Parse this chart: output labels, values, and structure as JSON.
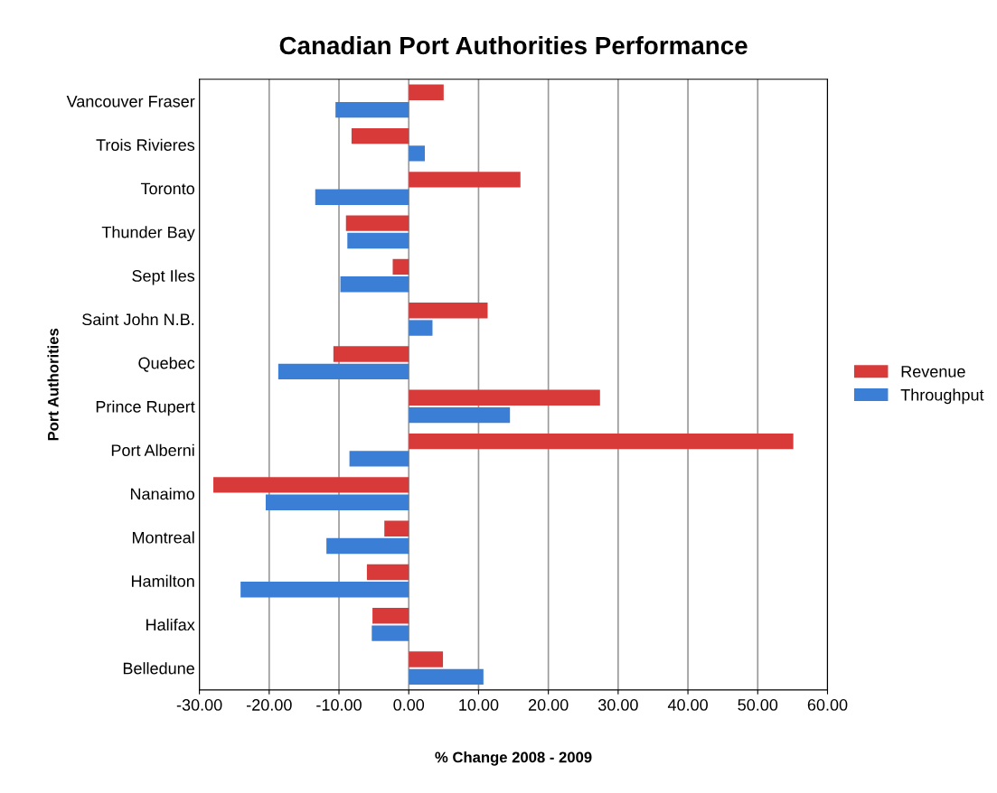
{
  "chart_data": {
    "type": "bar",
    "orientation": "horizontal",
    "title": "Canadian Port Authorities Performance",
    "xlabel": "% Change 2008 - 2009",
    "ylabel": "Port Authorities",
    "categories": [
      "Vancouver Fraser",
      "Trois Rivieres",
      "Toronto",
      "Thunder Bay",
      "Sept Iles",
      "Saint John N.B.",
      "Quebec",
      "Prince Rupert",
      "Port Alberni",
      "Nanaimo",
      "Montreal",
      "Hamilton",
      "Halifax",
      "Belledune"
    ],
    "series": [
      {
        "name": "Revenue",
        "color": "#d83a3a",
        "values": [
          5.0,
          -8.2,
          16.0,
          -9.0,
          -2.3,
          11.3,
          -10.8,
          27.4,
          55.1,
          -28.0,
          -3.5,
          -6.0,
          -5.2,
          4.9
        ]
      },
      {
        "name": "Throughput",
        "color": "#3a7fd5",
        "values": [
          -10.5,
          2.3,
          -13.4,
          -8.8,
          -9.8,
          3.4,
          -18.7,
          14.5,
          -8.5,
          -20.5,
          -11.8,
          -24.1,
          -5.3,
          10.7
        ]
      }
    ],
    "xlim": [
      -30,
      60
    ],
    "xticks": [
      {
        "value": -30,
        "label": "-30.00"
      },
      {
        "value": -20,
        "label": "-20.00"
      },
      {
        "value": -10,
        "label": "-10.00"
      },
      {
        "value": 0,
        "label": "0.00"
      },
      {
        "value": 10,
        "label": "10.00"
      },
      {
        "value": 20,
        "label": "20.00"
      },
      {
        "value": 30,
        "label": "30.00"
      },
      {
        "value": 40,
        "label": "40.00"
      },
      {
        "value": 50,
        "label": "50.00"
      },
      {
        "value": 60,
        "label": "60.00"
      }
    ],
    "grid": "x",
    "legend": "right"
  }
}
